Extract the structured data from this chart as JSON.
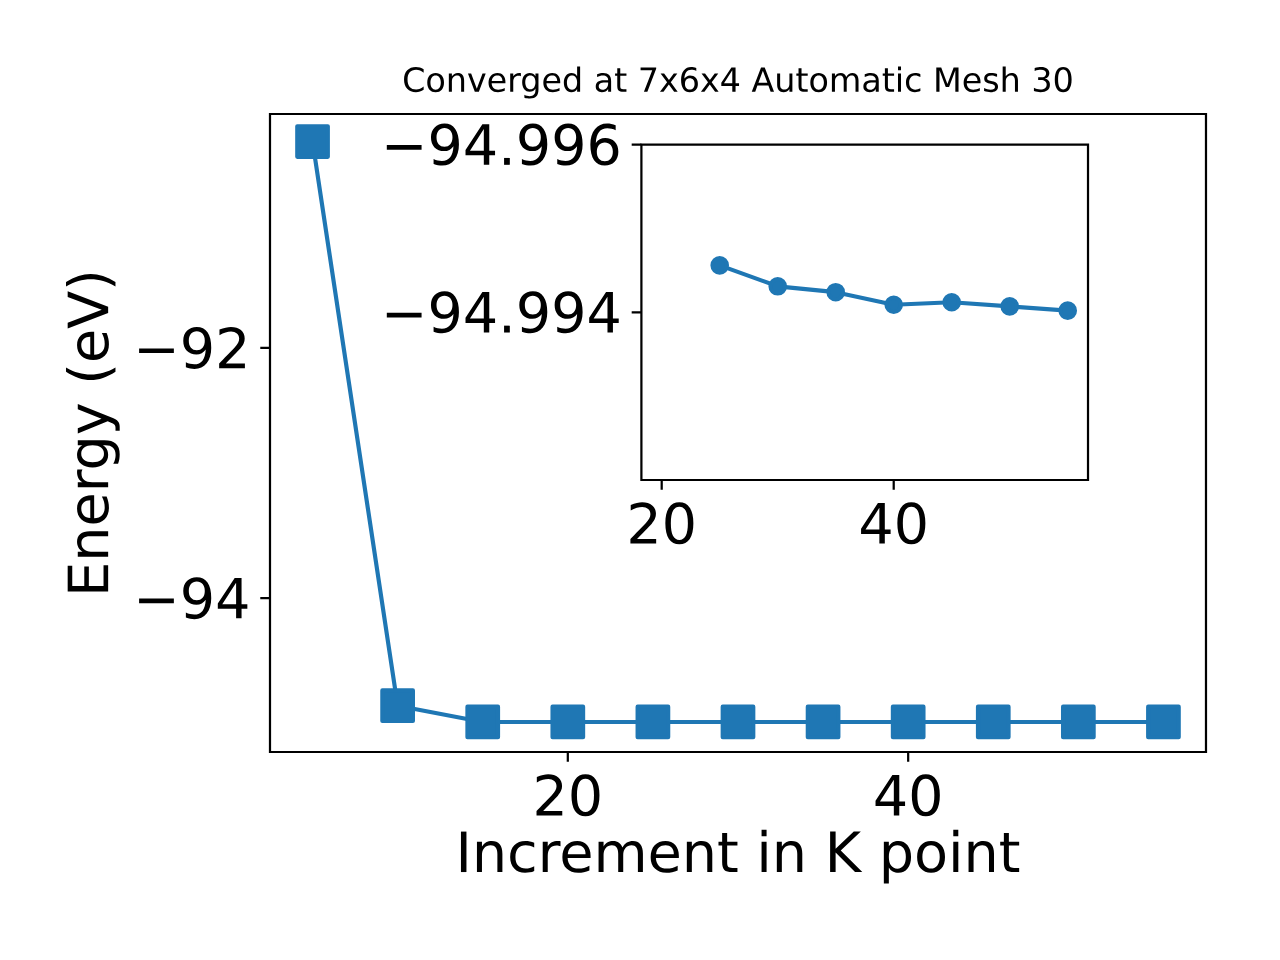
{
  "chart_data": [
    {
      "type": "line",
      "title": "Converged at 7x6x4 Automatic Mesh 30",
      "xlabel": "Increment in K point",
      "ylabel": "Energy (eV)",
      "x": [
        5,
        10,
        15,
        20,
        25,
        30,
        35,
        40,
        45,
        50,
        55
      ],
      "series": [
        {
          "color": "#1f77b4",
          "values": [
            -90.35,
            -94.86,
            -94.99,
            -94.99,
            -94.99,
            -94.99,
            -94.99,
            -94.99,
            -94.99,
            -94.99,
            -94.99
          ]
        }
      ],
      "xlim": [
        2.5,
        57.5
      ],
      "ylim": [
        -95.23,
        -90.13
      ],
      "xticks": [
        20,
        40
      ],
      "yticks": [
        {
          "value": -92,
          "label": "−92"
        },
        {
          "value": -94,
          "label": "−94"
        }
      ],
      "marker": "square",
      "line_style": "solid"
    },
    {
      "type": "line",
      "x": [
        25,
        30,
        35,
        40,
        45,
        50,
        55
      ],
      "series": [
        {
          "color": "#1f77b4",
          "values": [
            -94.99456,
            -94.99431,
            -94.99424,
            -94.99409,
            -94.99412,
            -94.99407,
            -94.99402
          ]
        }
      ],
      "xlim": [
        18.25,
        56.75
      ],
      "ylim": [
        -94.992,
        -94.996
      ],
      "xticks": [
        20,
        40
      ],
      "yticks": [
        {
          "value": -94.996,
          "label": "−94.996"
        },
        {
          "value": -94.994,
          "label": "−94.994"
        }
      ],
      "marker": "circle",
      "line_style": "solid"
    }
  ]
}
